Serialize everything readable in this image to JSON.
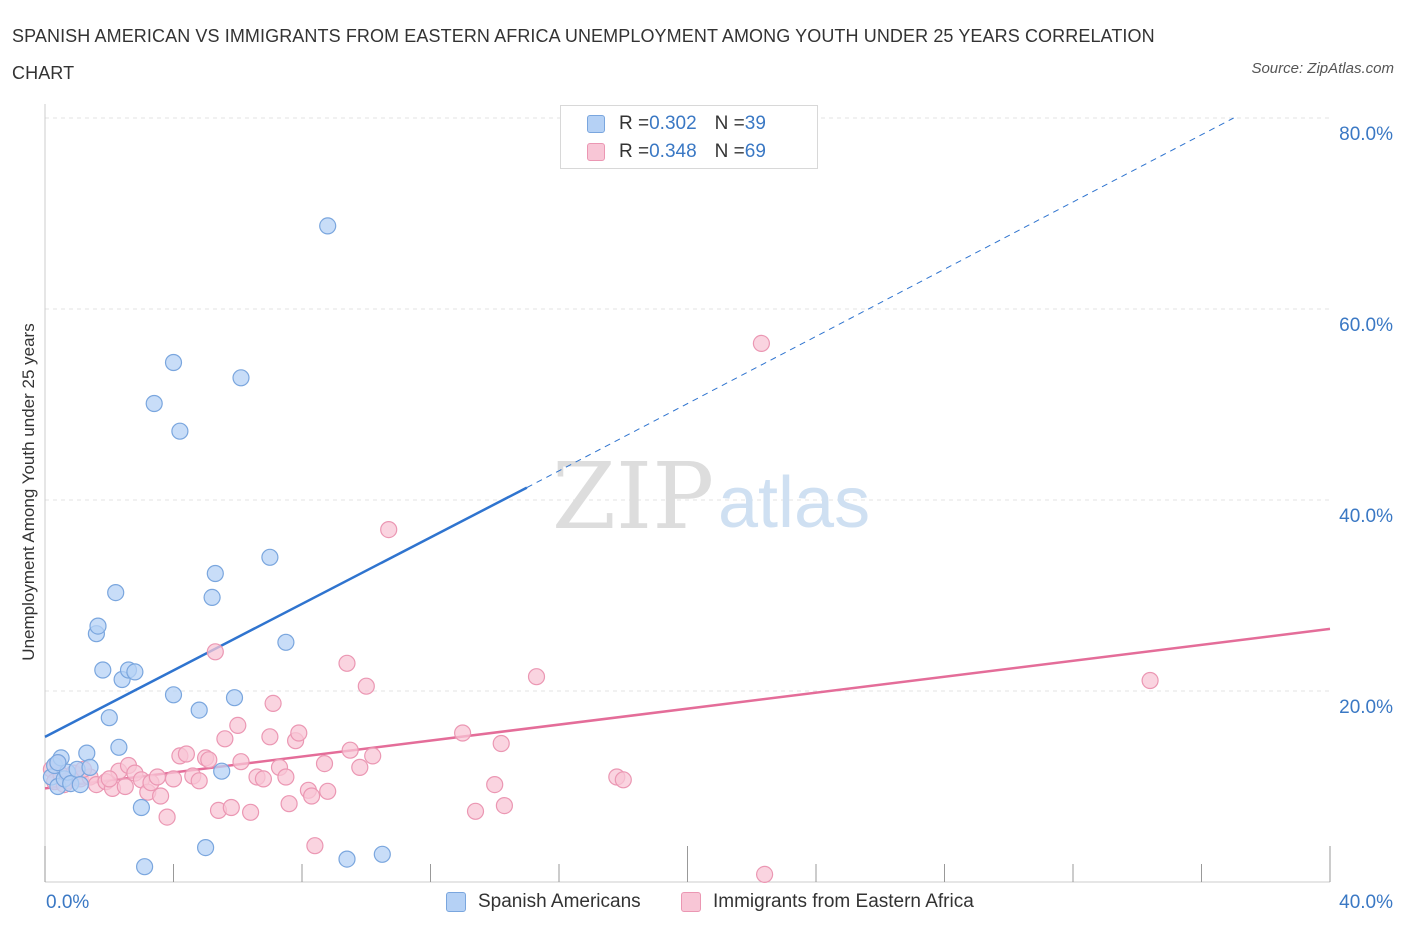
{
  "title": "SPANISH AMERICAN VS IMMIGRANTS FROM EASTERN AFRICA UNEMPLOYMENT AMONG YOUTH UNDER 25 YEARS CORRELATION CHART",
  "source": "Source: ZipAtlas.com",
  "watermark": {
    "zip": "ZIP",
    "atlas": "atlas"
  },
  "legend": {
    "rows": [
      {
        "r_label": "R = ",
        "r_value": "0.302",
        "n_label": "N = ",
        "n_value": "39"
      },
      {
        "r_label": "R = ",
        "r_value": "0.348",
        "n_label": "N = ",
        "n_value": "69"
      }
    ]
  },
  "colors": {
    "blue_fill": "#b5d1f5",
    "blue_stroke": "#7aa6de",
    "blue_line": "#2f74cf",
    "pink_fill": "#f8c6d6",
    "pink_stroke": "#eb97b3",
    "pink_line": "#e46d99",
    "grid": "#e3e3e3",
    "axis_text": "#3a78c4"
  },
  "chart_data": {
    "type": "scatter",
    "title": "SPANISH AMERICAN VS IMMIGRANTS FROM EASTERN AFRICA UNEMPLOYMENT AMONG YOUTH UNDER 25 YEARS CORRELATION CHART",
    "xlabel": "",
    "ylabel": "Unemployment Among Youth under 25 years",
    "xlim": [
      0,
      40
    ],
    "ylim": [
      0,
      80
    ],
    "x_tick_labels": [
      "0.0%",
      "40.0%"
    ],
    "y_ticks": [
      20,
      40,
      60,
      80
    ],
    "y_tick_labels": [
      "20.0%",
      "40.0%",
      "60.0%",
      "80.0%"
    ],
    "series": [
      {
        "name": "Spanish Americans",
        "color": "blue",
        "points": [
          [
            0.2,
            11.0
          ],
          [
            0.3,
            12.2
          ],
          [
            0.4,
            10.0
          ],
          [
            0.5,
            13.0
          ],
          [
            0.6,
            10.8
          ],
          [
            0.7,
            11.5
          ],
          [
            0.8,
            10.3
          ],
          [
            1.0,
            11.8
          ],
          [
            1.1,
            10.2
          ],
          [
            1.3,
            13.5
          ],
          [
            1.4,
            12.0
          ],
          [
            1.6,
            26.0
          ],
          [
            1.65,
            26.8
          ],
          [
            1.8,
            22.2
          ],
          [
            2.0,
            17.2
          ],
          [
            2.2,
            30.3
          ],
          [
            2.3,
            14.1
          ],
          [
            2.4,
            21.2
          ],
          [
            2.6,
            22.2
          ],
          [
            2.8,
            22.0
          ],
          [
            3.0,
            7.8
          ],
          [
            3.1,
            1.6
          ],
          [
            3.4,
            50.1
          ],
          [
            4.0,
            54.4
          ],
          [
            4.0,
            19.6
          ],
          [
            4.2,
            47.2
          ],
          [
            4.8,
            18.0
          ],
          [
            5.0,
            3.6
          ],
          [
            5.2,
            29.8
          ],
          [
            5.3,
            32.3
          ],
          [
            5.5,
            11.6
          ],
          [
            5.9,
            19.3
          ],
          [
            6.1,
            52.8
          ],
          [
            7.0,
            34.0
          ],
          [
            7.5,
            25.1
          ],
          [
            8.8,
            68.7
          ],
          [
            9.4,
            2.4
          ],
          [
            10.5,
            2.9
          ],
          [
            0.4,
            12.5
          ]
        ]
      },
      {
        "name": "Immigrants from Eastern Africa",
        "color": "pink",
        "points": [
          [
            0.2,
            11.8
          ],
          [
            0.3,
            10.5
          ],
          [
            0.4,
            12.4
          ],
          [
            0.5,
            11.2
          ],
          [
            0.7,
            10.6
          ],
          [
            0.9,
            11.4
          ],
          [
            1.1,
            10.8
          ],
          [
            1.4,
            11.0
          ],
          [
            1.6,
            10.2
          ],
          [
            1.9,
            10.5
          ],
          [
            2.1,
            9.8
          ],
          [
            2.3,
            11.6
          ],
          [
            2.5,
            10.0
          ],
          [
            2.6,
            12.2
          ],
          [
            2.8,
            11.4
          ],
          [
            3.0,
            10.7
          ],
          [
            3.2,
            9.4
          ],
          [
            3.3,
            10.4
          ],
          [
            3.6,
            9.0
          ],
          [
            3.8,
            6.8
          ],
          [
            4.0,
            10.8
          ],
          [
            4.2,
            13.2
          ],
          [
            4.4,
            13.4
          ],
          [
            4.6,
            11.1
          ],
          [
            4.8,
            10.6
          ],
          [
            5.0,
            13.0
          ],
          [
            5.3,
            24.1
          ],
          [
            5.4,
            7.5
          ],
          [
            5.6,
            15.0
          ],
          [
            5.8,
            7.8
          ],
          [
            6.0,
            16.4
          ],
          [
            6.1,
            12.6
          ],
          [
            6.4,
            7.3
          ],
          [
            6.6,
            11.0
          ],
          [
            6.8,
            10.8
          ],
          [
            7.0,
            15.2
          ],
          [
            7.1,
            18.7
          ],
          [
            7.3,
            12.0
          ],
          [
            7.5,
            11.0
          ],
          [
            7.6,
            8.2
          ],
          [
            7.8,
            14.8
          ],
          [
            7.9,
            15.6
          ],
          [
            8.2,
            9.6
          ],
          [
            8.3,
            9.0
          ],
          [
            8.4,
            3.8
          ],
          [
            8.7,
            12.4
          ],
          [
            8.8,
            9.5
          ],
          [
            9.4,
            22.9
          ],
          [
            9.5,
            13.8
          ],
          [
            9.8,
            12.0
          ],
          [
            10.0,
            20.5
          ],
          [
            10.2,
            13.2
          ],
          [
            10.7,
            36.9
          ],
          [
            13.0,
            15.6
          ],
          [
            13.4,
            7.4
          ],
          [
            14.0,
            10.2
          ],
          [
            14.2,
            14.5
          ],
          [
            14.3,
            8.0
          ],
          [
            15.3,
            21.5
          ],
          [
            17.8,
            11.0
          ],
          [
            18.0,
            10.7
          ],
          [
            22.3,
            56.4
          ],
          [
            22.4,
            0.8
          ],
          [
            34.4,
            21.1
          ],
          [
            0.6,
            10.2
          ],
          [
            1.2,
            11.8
          ],
          [
            2.0,
            10.8
          ],
          [
            3.5,
            11.0
          ],
          [
            5.1,
            12.8
          ]
        ]
      }
    ],
    "trend_lines": [
      {
        "series": "Spanish Americans",
        "x_start": 0,
        "y_start": 15.2,
        "x_solid_end": 15.0,
        "y_solid_end": 41.3,
        "x_end": 37.0,
        "y_end": 80.0,
        "dashed_after_solid": true
      },
      {
        "series": "Immigrants from Eastern Africa",
        "x_start": 0,
        "y_start": 9.8,
        "x_end": 40.0,
        "y_end": 26.5,
        "dashed_after_solid": false
      }
    ]
  },
  "bottom_legend": [
    {
      "label": "Spanish Americans"
    },
    {
      "label": "Immigrants from Eastern Africa"
    }
  ]
}
